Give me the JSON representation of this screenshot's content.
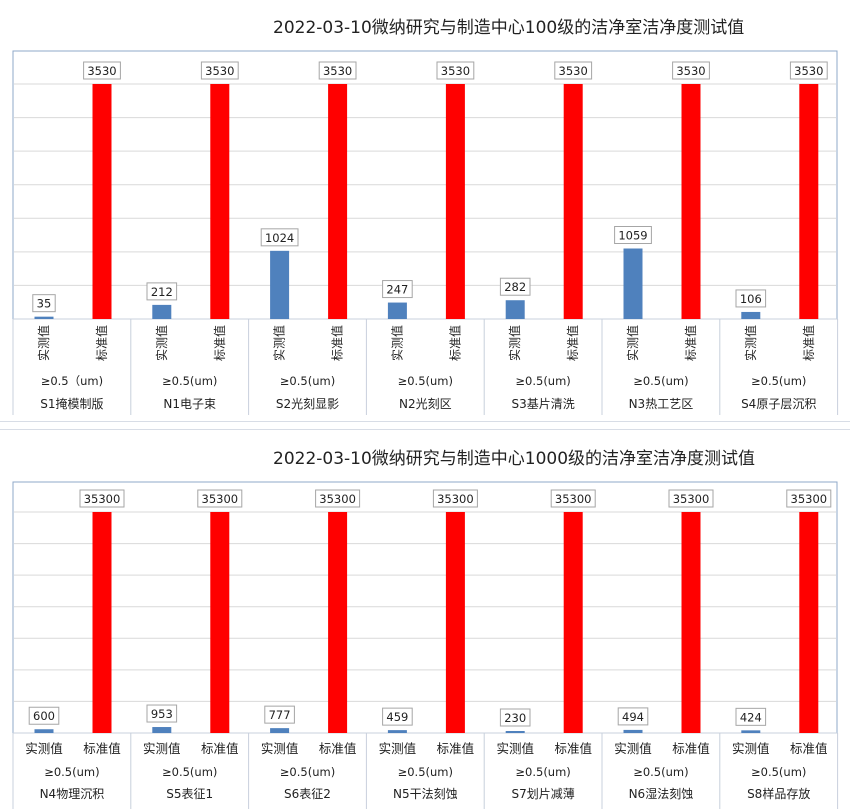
{
  "chart_data": [
    {
      "type": "bar",
      "title": "2022-03-10微纳研究与制造中心100级的洁净室洁净度测试值",
      "series": [
        {
          "name": "实测值",
          "values": [
            35,
            212,
            1024,
            247,
            282,
            1059,
            106
          ],
          "color": "#4f81bd"
        },
        {
          "name": "标准值",
          "values": [
            3530,
            3530,
            3530,
            3530,
            3530,
            3530,
            3530
          ],
          "color": "#ff0000"
        }
      ],
      "categories": [
        "S1掩模制版",
        "N1电子束",
        "S2光刻显影",
        "N2光刻区",
        "S3基片清洗",
        "N3热工艺区",
        "S4原子层沉积"
      ],
      "particle_labels": [
        "≥0.5（um)",
        "≥0.5(um)",
        "≥0.5(um)",
        "≥0.5(um)",
        "≥0.5(um)",
        "≥0.5(um)",
        "≥0.5(um)"
      ],
      "bar_labels": [
        "实测值",
        "标准值"
      ],
      "bar_label_orientation": "vertical",
      "ylim": [
        0,
        3530
      ],
      "grid": true,
      "legend": "none"
    },
    {
      "type": "bar",
      "title": "2022-03-10微纳研究与制造中心1000级的洁净室洁净度测试值",
      "series": [
        {
          "name": "实测值",
          "values": [
            600,
            953,
            777,
            459,
            230,
            494,
            424
          ],
          "color": "#4f81bd"
        },
        {
          "name": "标准值",
          "values": [
            35300,
            35300,
            35300,
            35300,
            35300,
            35300,
            35300
          ],
          "color": "#ff0000"
        }
      ],
      "categories": [
        "N4物理沉积",
        "S5表征1",
        "S6表征2",
        "N5干法刻蚀",
        "S7划片减薄",
        "N6湿法刻蚀",
        "S8样品存放"
      ],
      "particle_labels": [
        "≥0.5(um)",
        "≥0.5(um)",
        "≥0.5(um)",
        "≥0.5(um)",
        "≥0.5(um)",
        "≥0.5(um)",
        "≥0.5(um)"
      ],
      "bar_labels": [
        "实测值",
        "标准值"
      ],
      "bar_label_orientation": "horizontal",
      "ylim": [
        0,
        35300
      ],
      "grid": true,
      "legend": "none"
    }
  ],
  "colors": {
    "measured": "#4f81bd",
    "standard": "#ff0000",
    "grid": "#d9d9d9",
    "frame": "#8fa8c8"
  }
}
